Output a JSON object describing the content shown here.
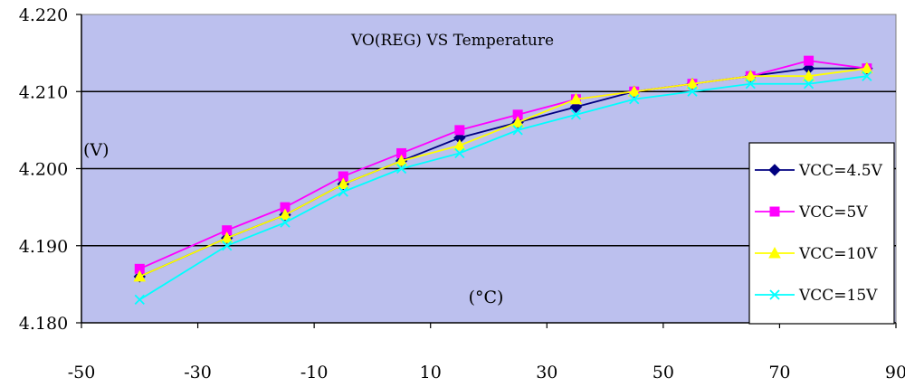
{
  "chart_data": {
    "type": "line",
    "title": "VO(REG) VS Temperature",
    "ylabel": "(V)",
    "xlabel": "(°C)",
    "xlim": [
      -50,
      90
    ],
    "ylim": [
      4.18,
      4.22
    ],
    "xticks": [
      "-50",
      "-30",
      "-10",
      "10",
      "30",
      "50",
      "70",
      "90"
    ],
    "xtick_values": [
      -50,
      -30,
      -10,
      10,
      30,
      50,
      70,
      90
    ],
    "yticks": [
      "4.180",
      "4.190",
      "4.200",
      "4.210",
      "4.220"
    ],
    "ytick_values": [
      4.18,
      4.19,
      4.2,
      4.21,
      4.22
    ],
    "grid": "horizontal",
    "legend_position": "right",
    "background_color": "#bcc0ee",
    "x": [
      -40,
      -25,
      -15,
      -5,
      5,
      15,
      25,
      35,
      45,
      55,
      65,
      75,
      85
    ],
    "series": [
      {
        "name": "VCC=4.5V",
        "color": "#000080",
        "marker": "diamond",
        "values": [
          4.186,
          4.191,
          4.194,
          4.198,
          4.201,
          4.204,
          4.206,
          4.208,
          4.21,
          4.211,
          4.212,
          4.213,
          4.213
        ]
      },
      {
        "name": "VCC=5V",
        "color": "#ff00ff",
        "marker": "square",
        "values": [
          4.187,
          4.192,
          4.195,
          4.199,
          4.202,
          4.205,
          4.207,
          4.209,
          4.21,
          4.211,
          4.212,
          4.214,
          4.213
        ]
      },
      {
        "name": "VCC=10V",
        "color": "#ffff00",
        "marker": "triangle",
        "values": [
          4.186,
          4.191,
          4.194,
          4.198,
          4.201,
          4.203,
          4.206,
          4.209,
          4.21,
          4.211,
          4.212,
          4.212,
          4.213
        ]
      },
      {
        "name": "VCC=15V",
        "color": "#00ffff",
        "marker": "x",
        "values": [
          4.183,
          4.19,
          4.193,
          4.197,
          4.2,
          4.202,
          4.205,
          4.207,
          4.209,
          4.21,
          4.211,
          4.211,
          4.212
        ]
      }
    ]
  }
}
